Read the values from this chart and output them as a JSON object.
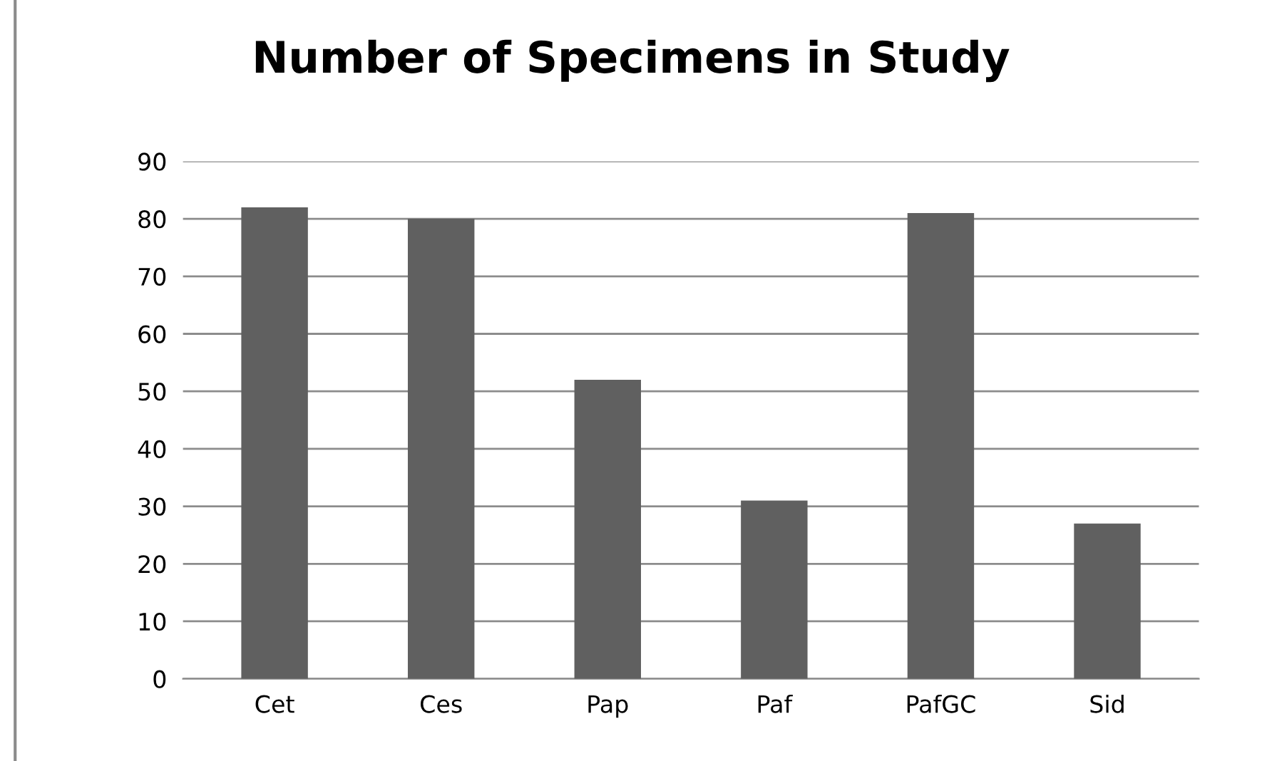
{
  "chart_data": {
    "type": "bar",
    "title": "Number of Specimens in Study",
    "categories": [
      "Cet",
      "Ces",
      "Pap",
      "Paf",
      "PafGC",
      "Sid"
    ],
    "values": [
      82,
      80,
      52,
      31,
      81,
      27
    ],
    "color": "#606060",
    "ylim": [
      0,
      90
    ],
    "yticks": [
      0,
      10,
      20,
      30,
      40,
      50,
      60,
      70,
      80,
      90
    ],
    "grid": "y",
    "legend": false
  }
}
